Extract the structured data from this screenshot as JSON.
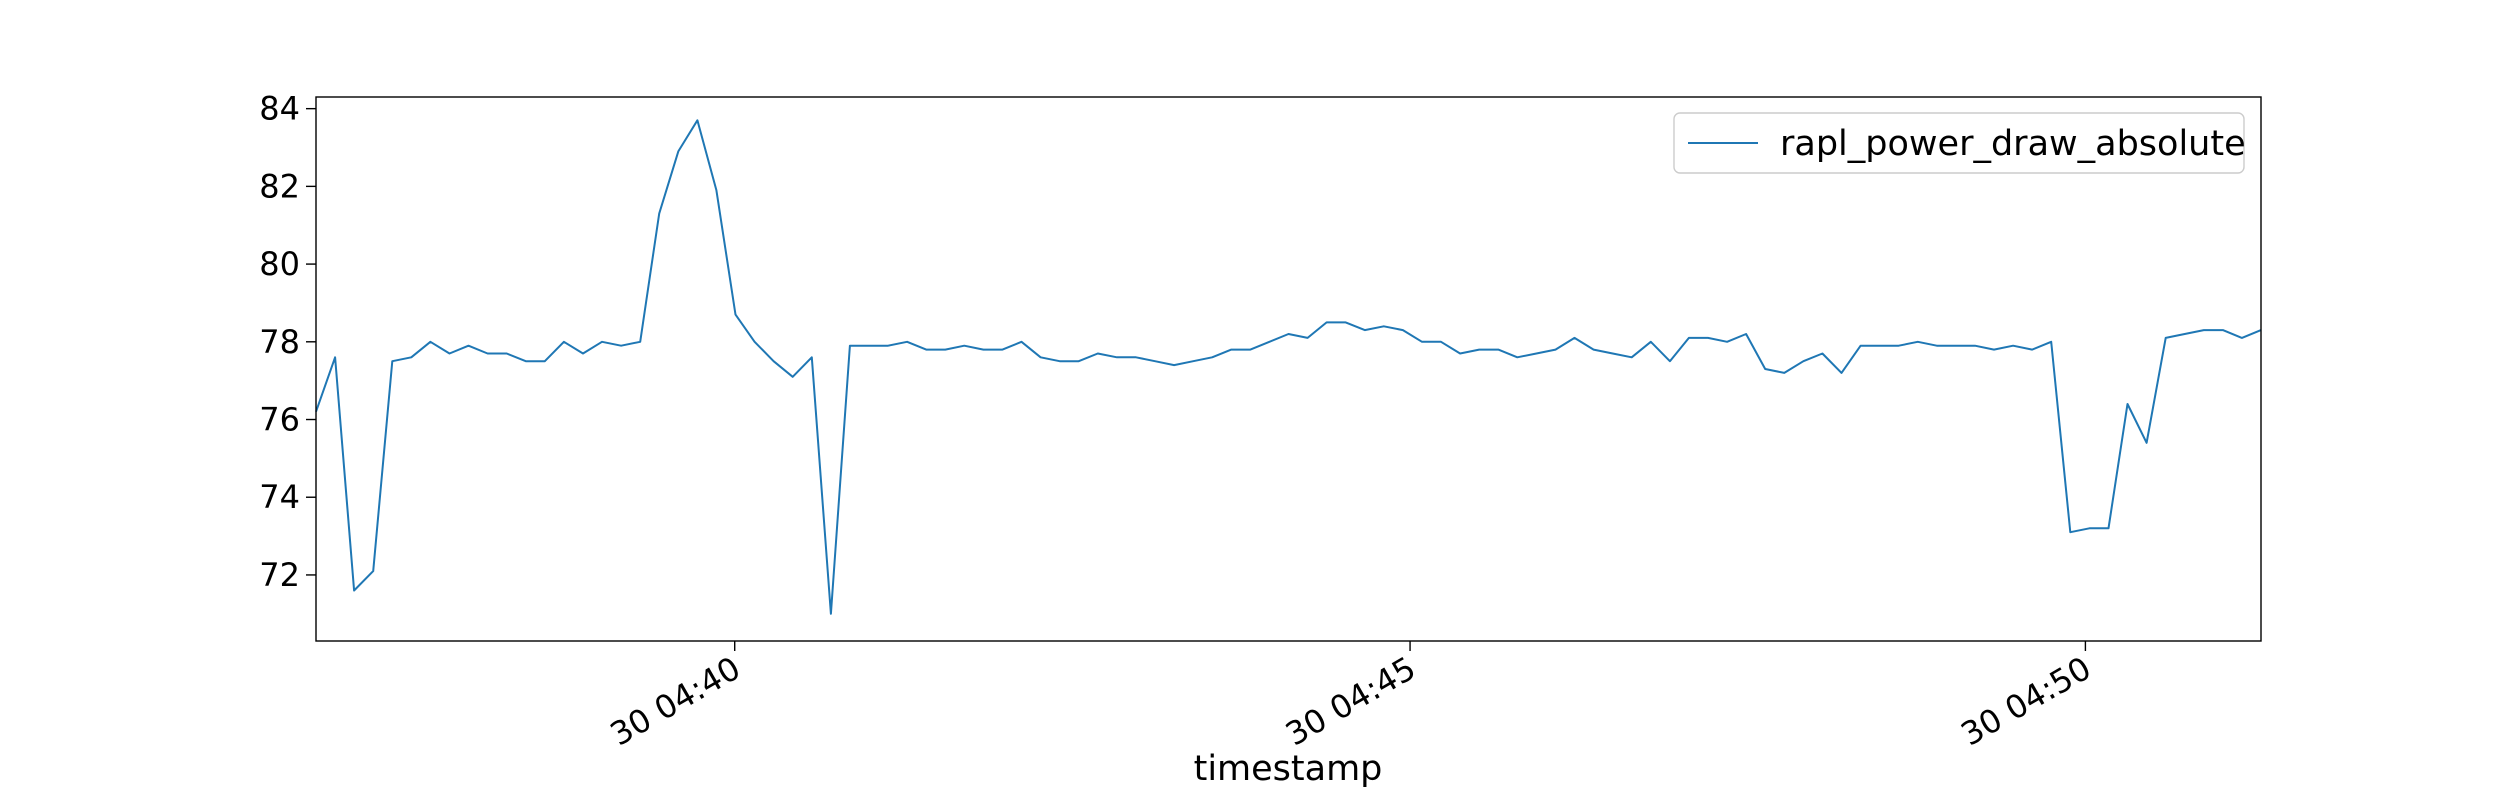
{
  "chart_data": {
    "type": "line",
    "title": "",
    "xlabel": "timestamp",
    "ylabel": "",
    "x_range_minutes": [
      35.4,
      49.8
    ],
    "xlim": [
      "30 04:35:24",
      "30 04:49:48"
    ],
    "ylim": [
      70.3,
      84.3
    ],
    "x_ticks": [
      {
        "label": "30 04:40",
        "minute": 38.5
      },
      {
        "label": "30 04:45",
        "minute": 43.5
      },
      {
        "label": "30 04:50",
        "minute": 48.5
      }
    ],
    "y_ticks": [
      72,
      74,
      76,
      78,
      80,
      82,
      84
    ],
    "grid": false,
    "legend_position": "top-right",
    "series": [
      {
        "name": "rapl_power_draw_absolute",
        "color": "#1f77b4",
        "values": [
          76.2,
          77.6,
          71.6,
          72.1,
          77.5,
          77.6,
          78.0,
          77.7,
          77.9,
          77.7,
          77.7,
          77.5,
          77.5,
          78.0,
          77.7,
          78.0,
          77.9,
          78.0,
          81.3,
          82.9,
          83.7,
          81.9,
          78.7,
          78.0,
          77.5,
          77.1,
          77.6,
          71.0,
          77.9,
          77.9,
          77.9,
          78.0,
          77.8,
          77.8,
          77.9,
          77.8,
          77.8,
          78.0,
          77.6,
          77.5,
          77.5,
          77.7,
          77.6,
          77.6,
          77.5,
          77.4,
          77.5,
          77.6,
          77.8,
          77.8,
          78.0,
          78.2,
          78.1,
          78.5,
          78.5,
          78.3,
          78.4,
          78.3,
          78.0,
          78.0,
          77.7,
          77.8,
          77.8,
          77.6,
          77.7,
          77.8,
          78.1,
          77.8,
          77.7,
          77.6,
          78.0,
          77.5,
          78.1,
          78.1,
          78.0,
          78.2,
          77.3,
          77.2,
          77.5,
          77.7,
          77.2,
          77.9,
          77.9,
          77.9,
          78.0,
          77.9,
          77.9,
          77.9,
          77.8,
          77.9,
          77.8,
          78.0,
          73.1,
          73.2,
          73.2,
          76.4,
          75.4,
          78.1,
          78.2,
          78.3,
          78.3,
          78.1,
          78.3
        ]
      }
    ]
  }
}
